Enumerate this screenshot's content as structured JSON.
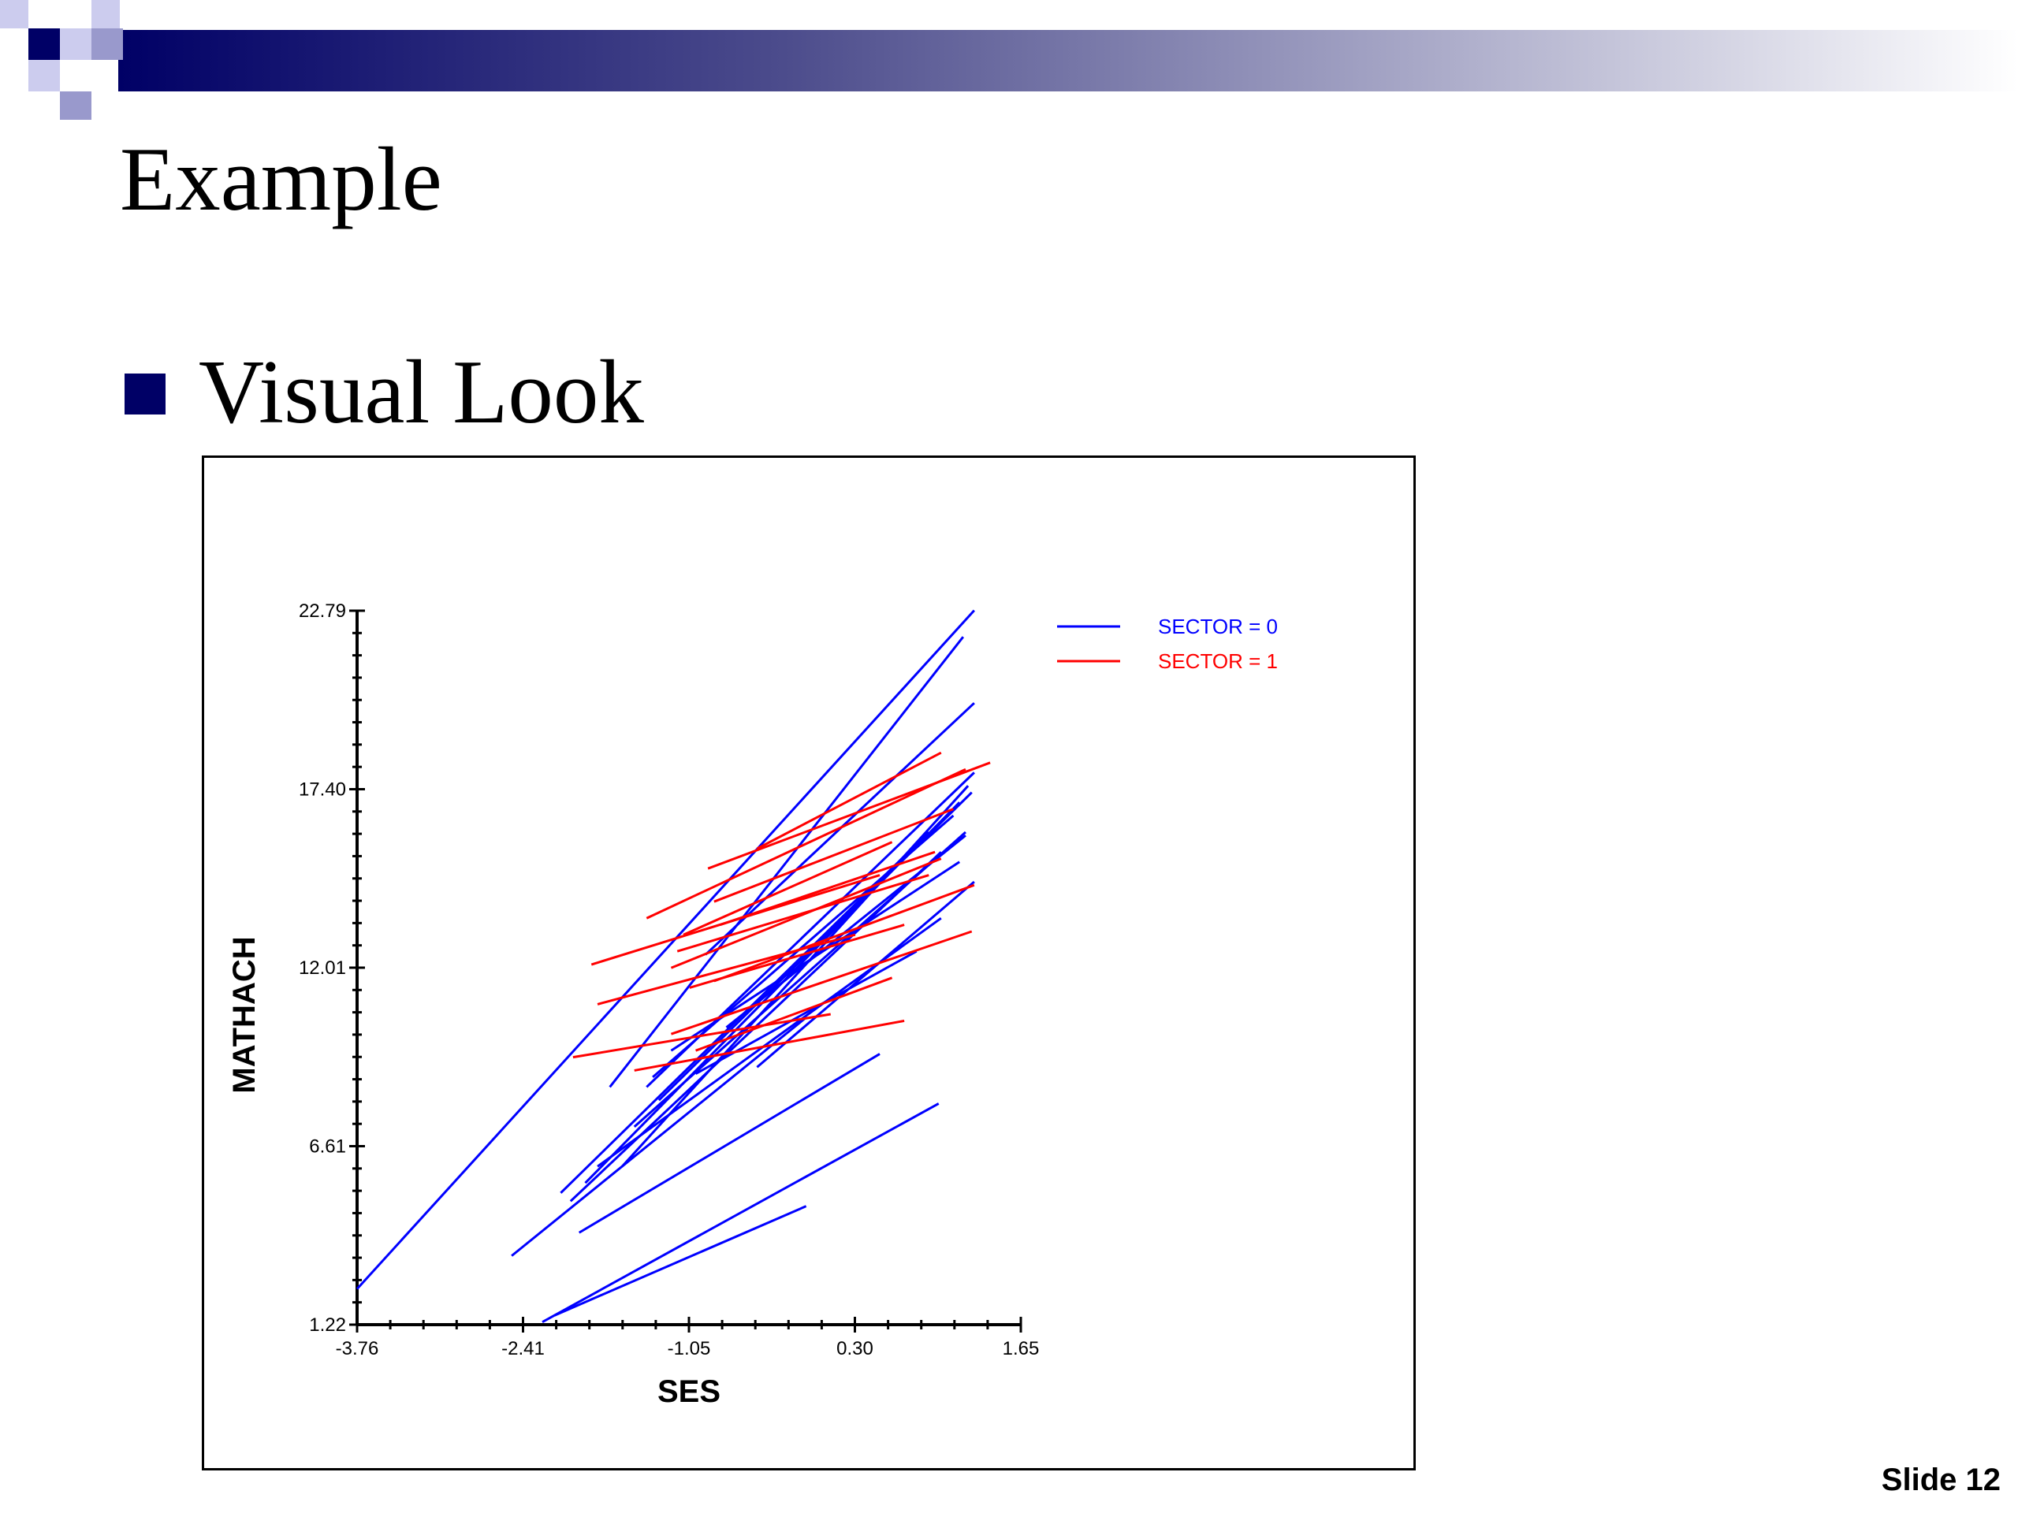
{
  "slide": {
    "title": "Example",
    "bullet": "Visual Look",
    "slide_number": "Slide 12",
    "colors": {
      "header_dark": "#000066",
      "header_light": "#9999cc",
      "bullet": "#000066"
    }
  },
  "chart_data": {
    "type": "line",
    "xlabel": "SES",
    "ylabel": "MATHACH",
    "xlim": [
      -3.76,
      1.65
    ],
    "ylim": [
      1.22,
      22.79
    ],
    "xticks": [
      "-3.76",
      "-2.41",
      "-1.05",
      "0.30",
      "1.65"
    ],
    "yticks": [
      "1.22",
      "6.61",
      "12.01",
      "17.40",
      "22.79"
    ],
    "grid": false,
    "legend_position": "top-right",
    "series": [
      {
        "name": "SECTOR = 0",
        "color": "#0000ff",
        "segments": [
          [
            [
              -3.76,
              2.3
            ],
            [
              1.27,
              22.8
            ]
          ],
          [
            [
              -1.7,
              8.4
            ],
            [
              1.18,
              22.0
            ]
          ],
          [
            [
              -0.92,
              12.4
            ],
            [
              1.27,
              20.0
            ]
          ],
          [
            [
              -2.5,
              3.3
            ],
            [
              -0.1,
              10.5
            ]
          ],
          [
            [
              -2.1,
              5.2
            ],
            [
              0.9,
              16.1
            ]
          ],
          [
            [
              -1.9,
              5.5
            ],
            [
              1.15,
              17.0
            ]
          ],
          [
            [
              -1.4,
              8.4
            ],
            [
              1.27,
              17.9
            ]
          ],
          [
            [
              -1.6,
              6.0
            ],
            [
              1.22,
              17.5
            ]
          ],
          [
            [
              -2.02,
              4.95
            ],
            [
              1.0,
              15.5
            ]
          ],
          [
            [
              -1.3,
              8.0
            ],
            [
              1.25,
              17.3
            ]
          ],
          [
            [
              -1.5,
              7.2
            ],
            [
              1.2,
              16.1
            ]
          ],
          [
            [
              -1.35,
              8.7
            ],
            [
              1.1,
              16.6
            ]
          ],
          [
            [
              -0.75,
              10.2
            ],
            [
              1.2,
              16.0
            ]
          ],
          [
            [
              -1.2,
              9.5
            ],
            [
              1.15,
              15.2
            ]
          ],
          [
            [
              -1.8,
              6.0
            ],
            [
              1.0,
              13.5
            ]
          ],
          [
            [
              -0.5,
              9.0
            ],
            [
              1.27,
              14.6
            ]
          ],
          [
            [
              -1.0,
              8.8
            ],
            [
              0.8,
              12.5
            ]
          ],
          [
            [
              -1.95,
              4.0
            ],
            [
              0.5,
              9.4
            ]
          ],
          [
            [
              -2.25,
              1.3
            ],
            [
              0.98,
              7.9
            ]
          ],
          [
            [
              -2.15,
              1.5
            ],
            [
              -0.1,
              4.8
            ]
          ]
        ]
      },
      {
        "name": "SECTOR = 1",
        "color": "#ff0000",
        "segments": [
          [
            [
              -0.5,
              15.6
            ],
            [
              1.0,
              18.5
            ]
          ],
          [
            [
              -1.4,
              13.5
            ],
            [
              1.2,
              18.0
            ]
          ],
          [
            [
              -0.9,
              15.0
            ],
            [
              1.4,
              18.2
            ]
          ],
          [
            [
              -0.85,
              14.0
            ],
            [
              1.1,
              16.8
            ]
          ],
          [
            [
              -0.8,
              13.3
            ],
            [
              0.95,
              15.5
            ]
          ],
          [
            [
              -1.1,
              13.0
            ],
            [
              0.6,
              15.8
            ]
          ],
          [
            [
              -1.85,
              12.1
            ],
            [
              0.5,
              14.8
            ]
          ],
          [
            [
              -1.2,
              12.0
            ],
            [
              1.0,
              15.3
            ]
          ],
          [
            [
              -0.85,
              11.6
            ],
            [
              1.27,
              14.5
            ]
          ],
          [
            [
              -1.15,
              12.5
            ],
            [
              0.9,
              14.8
            ]
          ],
          [
            [
              -1.05,
              11.4
            ],
            [
              0.7,
              13.3
            ]
          ],
          [
            [
              -1.8,
              10.9
            ],
            [
              0.3,
              13.0
            ]
          ],
          [
            [
              -1.2,
              10.0
            ],
            [
              1.25,
              13.1
            ]
          ],
          [
            [
              -1.0,
              9.5
            ],
            [
              0.6,
              11.7
            ]
          ],
          [
            [
              -2.0,
              9.3
            ],
            [
              0.1,
              10.6
            ]
          ],
          [
            [
              -1.5,
              8.9
            ],
            [
              0.7,
              10.4
            ]
          ]
        ]
      }
    ]
  }
}
